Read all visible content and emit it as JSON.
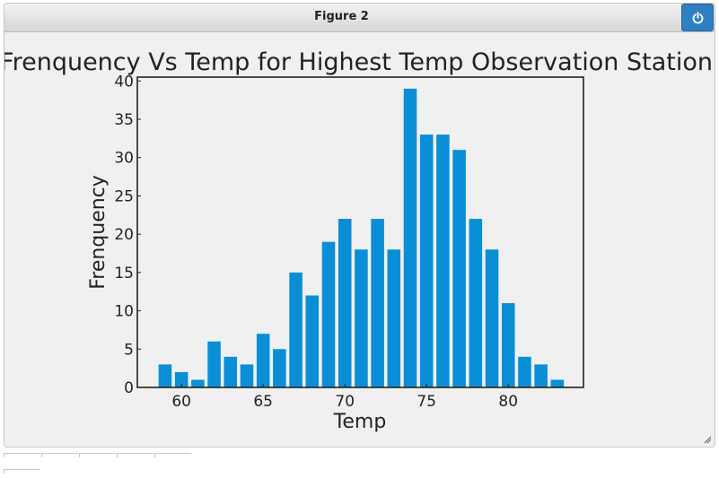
{
  "window": {
    "title": "Figure 2",
    "close_icon": "power-icon"
  },
  "colors": {
    "bar": "#0a8fd6",
    "axis": "#222222",
    "background": "#f0f0f0"
  },
  "chart_data": {
    "type": "bar",
    "title": "Frenquency Vs Temp for Highest Temp Observation Station",
    "xlabel": "Temp",
    "ylabel": "Frenquency",
    "xlim": [
      57.3,
      84.6
    ],
    "ylim": [
      0,
      40.5
    ],
    "xticks": [
      "60",
      "65",
      "70",
      "75",
      "80"
    ],
    "yticks": [
      "0",
      "5",
      "10",
      "15",
      "20",
      "25",
      "30",
      "35",
      "40"
    ],
    "x": [
      59,
      60,
      61,
      62,
      63,
      64,
      65,
      66,
      67,
      68,
      69,
      70,
      71,
      72,
      73,
      74,
      75,
      76,
      77,
      78,
      79,
      80,
      81,
      82,
      83
    ],
    "values": [
      3,
      2,
      1,
      6,
      4,
      3,
      7,
      5,
      15,
      12,
      19,
      22,
      18,
      22,
      18,
      39,
      33,
      33,
      31,
      22,
      18,
      11,
      4,
      3,
      1
    ],
    "grid": false
  }
}
